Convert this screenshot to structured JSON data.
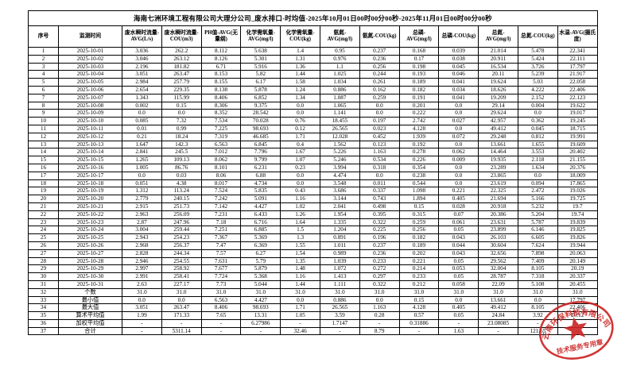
{
  "title": "海南七洲环境工程有限公司大理分公司_废水排口-时均值-2025年10月01日00时00分00秒-2025年11月01日00时00分00秒",
  "table": {
    "columns": [
      "序号",
      "监测时间",
      "废水瞬时流量-AVG(L/s)",
      "废水瞬时流量-COU(m3)",
      "PH值-AVG(无量纲)",
      "化学需氧量-AVG(mg/l)",
      "化学需氧量-COU(kg)",
      "氨氮-AVG(mg/l)",
      "氨氮-COU(kg)",
      "总磷-AVG(mg/l)",
      "总磷-COU(kg)",
      "总氮-AVG(mg/l)",
      "总氮-COU(kg)",
      "水温-AVG(摄氏度)"
    ],
    "rows": [
      [
        "1",
        "2025-10-01",
        "3.036",
        "262.2",
        "8.112",
        "5.638",
        "1.4",
        "0.95",
        "0.237",
        "0.168",
        "0.039",
        "21.014",
        "5.478",
        "22.341"
      ],
      [
        "2",
        "2025-10-02",
        "3.046",
        "263.12",
        "8.126",
        "5.301",
        "1.31",
        "0.976",
        "0.236",
        "0.17",
        "0.038",
        "20.911",
        "5.424",
        "22.111"
      ],
      [
        "3",
        "2025-10-03",
        "2.196",
        "181.82",
        "6.71",
        "5.916",
        "1.36",
        "1.1",
        "0.256",
        "0.198",
        "0.045",
        "16.534",
        "3.726",
        "17.797"
      ],
      [
        "4",
        "2025-10-04",
        "3.051",
        "263.47",
        "8.153",
        "5.82",
        "1.44",
        "1.025",
        "0.244",
        "0.193",
        "0.046",
        "20.11",
        "5.239",
        "21.917"
      ],
      [
        "5",
        "2025-10-05",
        "2.984",
        "257.79",
        "8.155",
        "6.17",
        "1.58",
        "1.034",
        "0.261",
        "0.189",
        "0.041",
        "19.624",
        "5.03",
        "22.058"
      ],
      [
        "6",
        "2025-10-06",
        "2.654",
        "229.35",
        "8.138",
        "5.878",
        "1.24",
        "0.886",
        "0.162",
        "0.182",
        "0.034",
        "18.626",
        "4.222",
        "22.406"
      ],
      [
        "7",
        "2025-10-07",
        "1.343",
        "115.99",
        "8.406",
        "6.852",
        "1.34",
        "1.087",
        "0.259",
        "0.191",
        "0.041",
        "19.209",
        "2.152",
        "22.123"
      ],
      [
        "8",
        "2025-10-08",
        "0.002",
        "0.15",
        "8.306",
        "9.375",
        "0.0",
        "1.065",
        "0.0",
        "0.201",
        "0.0",
        "29.14",
        "0.004",
        "19.622"
      ],
      [
        "9",
        "2025-10-09",
        "0.0",
        "0.0",
        "8.352",
        "28.542",
        "0.0",
        "1.141",
        "0.0",
        "0.222",
        "0.0",
        "29.624",
        "0.0",
        "19.017"
      ],
      [
        "10",
        "2025-10-10",
        "0.085",
        "7.32",
        "7.534",
        "70.028",
        "0.76",
        "18.455",
        "0.197",
        "2.742",
        "0.027",
        "42.957",
        "0.362",
        "19.245"
      ],
      [
        "11",
        "2025-10-11",
        "0.01",
        "0.99",
        "7.225",
        "98.693",
        "0.12",
        "26.565",
        "0.023",
        "4.128",
        "0.0",
        "49.412",
        "0.045",
        "18.715"
      ],
      [
        "12",
        "2025-10-12",
        "0.21",
        "18.24",
        "7.319",
        "46.685",
        "1.71",
        "12.028",
        "0.452",
        "1.939",
        "0.072",
        "29.248",
        "0.812",
        "19.991"
      ],
      [
        "13",
        "2025-10-13",
        "1.647",
        "142.3",
        "6.563",
        "6.845",
        "0.4",
        "1.562",
        "0.123",
        "0.192",
        "0.0",
        "13.661",
        "1.655",
        "19.609"
      ],
      [
        "14",
        "2025-10-14",
        "2.841",
        "245.5",
        "7.012",
        "7.796",
        "1.67",
        "5.226",
        "1.163",
        "0.278",
        "0.062",
        "14.464",
        "3.553",
        "20.402"
      ],
      [
        "15",
        "2025-10-15",
        "1.265",
        "109.13",
        "8.062",
        "9.799",
        "1.07",
        "5.246",
        "0.534",
        "0.226",
        "0.009",
        "19.935",
        "2.118",
        "21.155"
      ],
      [
        "16",
        "2025-10-16",
        "1.005",
        "86.76",
        "8.101",
        "6.231",
        "0.23",
        "3.994",
        "0.318",
        "0.354",
        "0.0",
        "23.289",
        "1.634",
        "20.376"
      ],
      [
        "17",
        "2025-10-17",
        "0.0",
        "0.03",
        "8.06",
        "6.88",
        "0.0",
        "4.474",
        "0.0",
        "0.238",
        "0.0",
        "23.865",
        "0.0",
        "18.009"
      ],
      [
        "18",
        "2025-10-18",
        "0.051",
        "4.38",
        "8.017",
        "4.734",
        "0.0",
        "3.548",
        "0.011",
        "0.544",
        "0.0",
        "23.619",
        "0.094",
        "17.865"
      ],
      [
        "19",
        "2025-10-19",
        "1.312",
        "113.24",
        "7.524",
        "5.835",
        "0.43",
        "3.686",
        "0.337",
        "1.098",
        "0.221",
        "22.325",
        "2.472",
        "19.026"
      ],
      [
        "20",
        "2025-10-20",
        "2.779",
        "240.15",
        "7.242",
        "5.091",
        "1.16",
        "3.144",
        "0.743",
        "1.894",
        "0.405",
        "21.694",
        "5.166",
        "19.725"
      ],
      [
        "21",
        "2025-10-21",
        "2.915",
        "251.73",
        "7.142",
        "4.427",
        "1.02",
        "2.041",
        "0.498",
        "0.15",
        "0.028",
        "20.918",
        "5.232",
        "19.7"
      ],
      [
        "22",
        "2025-10-22",
        "2.963",
        "256.09",
        "7.231",
        "6.433",
        "1.26",
        "1.954",
        "0.395",
        "0.315",
        "0.07",
        "20.386",
        "5.204",
        "19.74"
      ],
      [
        "23",
        "2025-10-23",
        "2.87",
        "247.96",
        "7.18",
        "6.716",
        "1.64",
        "1.335",
        "0.322",
        "0.259",
        "0.061",
        "23.631",
        "5.787",
        "19.839"
      ],
      [
        "24",
        "2025-10-24",
        "3.004",
        "259.44",
        "7.251",
        "6.885",
        "1.5",
        "1.204",
        "0.225",
        "0.256",
        "0.05",
        "23.899",
        "6.146",
        "19.825"
      ],
      [
        "25",
        "2025-10-25",
        "2.943",
        "254.23",
        "7.367",
        "5.369",
        "1.3",
        "0.891",
        "0.196",
        "0.182",
        "0.043",
        "26.103",
        "6.605",
        "19.826"
      ],
      [
        "26",
        "2025-10-26",
        "2.968",
        "256.37",
        "7.47",
        "6.369",
        "1.55",
        "1.011",
        "0.237",
        "0.189",
        "0.044",
        "30.604",
        "7.624",
        "19.944"
      ],
      [
        "27",
        "2025-10-27",
        "2.828",
        "244.34",
        "7.57",
        "6.27",
        "1.54",
        "0.989",
        "0.236",
        "0.202",
        "0.043",
        "32.656",
        "7.898",
        "20.063"
      ],
      [
        "28",
        "2025-10-28",
        "2.946",
        "254.55",
        "7.631",
        "5.79",
        "1.35",
        "1.039",
        "0.233",
        "0.221",
        "0.05",
        "29.562",
        "7.409",
        "20.149"
      ],
      [
        "29",
        "2025-10-29",
        "2.997",
        "258.92",
        "7.677",
        "5.879",
        "1.48",
        "1.072",
        "0.272",
        "0.214",
        "0.053",
        "32.004",
        "8.105",
        "20.19"
      ],
      [
        "30",
        "2025-10-30",
        "2.991",
        "258.41",
        "7.724",
        "5.368",
        "1.16",
        "1.413",
        "0.297",
        "0.233",
        "0.05",
        "28.787",
        "7.318",
        "20.337"
      ],
      [
        "31",
        "2025-10-31",
        "2.63",
        "227.17",
        "7.73",
        "5.044",
        "1.44",
        "1.111",
        "0.322",
        "0.212",
        "0.058",
        "22.09",
        "5.108",
        "20.455"
      ],
      [
        "32",
        "个数",
        "31.0",
        "31.0",
        "31.0",
        "31.0",
        "31.0",
        "31.0",
        "31.0",
        "31.0",
        "31.0",
        "31.0",
        "31.0",
        "31.0"
      ],
      [
        "33",
        "最小值",
        "0.0",
        "0.0",
        "6.563",
        "4.427",
        "0.0",
        "0.886",
        "0.0",
        "0.15",
        "0.0",
        "13.661",
        "0.0",
        "17.797"
      ],
      [
        "34",
        "最大值",
        "3.051",
        "263.47",
        "8.406",
        "98.693",
        "1.71",
        "26.565",
        "1.163",
        "4.128",
        "0.405",
        "49.412",
        "8.105",
        "22.406"
      ],
      [
        "35",
        "算术平均值",
        "1.99",
        "171.33",
        "7.65",
        "13.31",
        "1.05",
        "3.59",
        "0.28",
        "0.57",
        "0.05",
        "24.84",
        "3.92",
        "20.12"
      ],
      [
        "36",
        "加权平均值",
        "-",
        "-",
        "-",
        "6.27986",
        "-",
        "1.7147",
        "-",
        "0.31886",
        "-",
        "23.08085",
        "-",
        "-"
      ],
      [
        "37",
        "合计",
        "-",
        "5311.14",
        "-",
        "-",
        "32.46",
        "-",
        "8.79",
        "-",
        "1.63",
        "-",
        "121.65",
        "-"
      ]
    ]
  },
  "stamp": {
    "arc_text": "云南环保科技有限公司",
    "bottom_text": "技术服务专用章",
    "color": "#cc2222"
  }
}
